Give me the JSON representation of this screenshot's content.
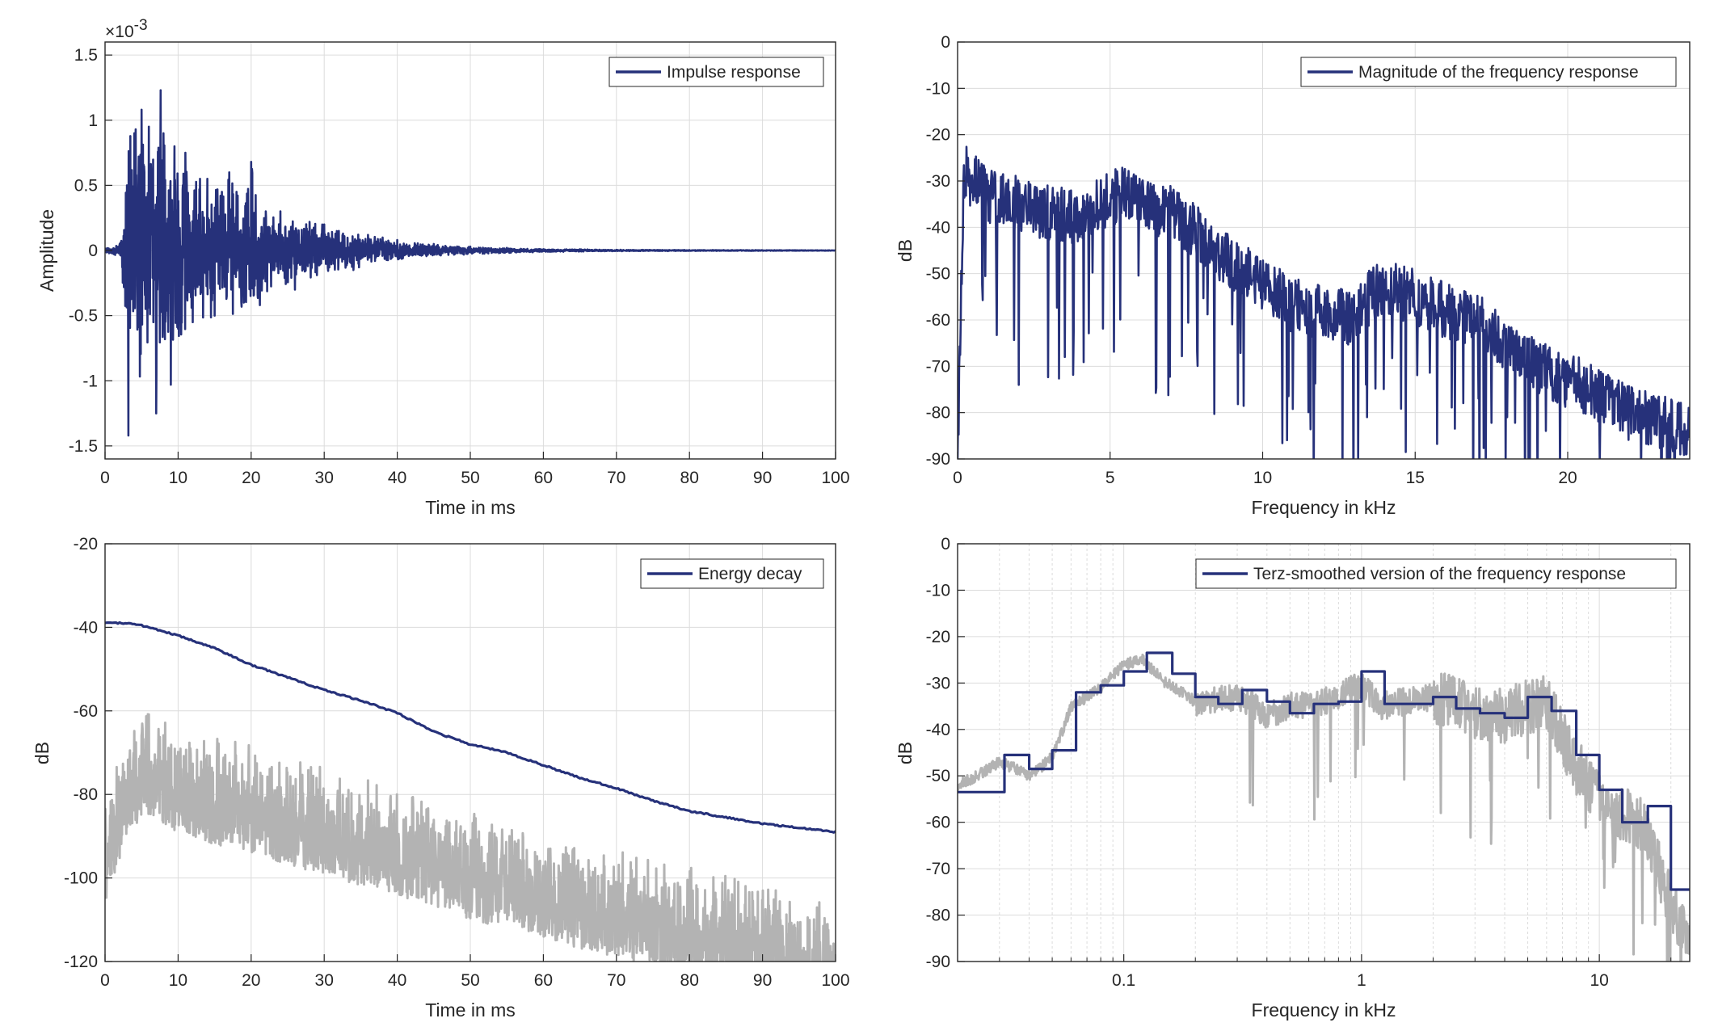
{
  "colors": {
    "primary": "#26317a",
    "secondary": "#b3b3b3",
    "grid": "#dcdcdc",
    "axis": "#262626"
  },
  "chart_data": [
    {
      "id": "impulse",
      "type": "line",
      "title": "",
      "xlabel": "Time in ms",
      "ylabel": "Amplitude",
      "xlim": [
        0,
        100
      ],
      "ylim": [
        -1.6,
        1.6
      ],
      "xticks": [
        0,
        10,
        20,
        30,
        40,
        50,
        60,
        70,
        80,
        90,
        100
      ],
      "yticks": [
        -1.5,
        -1,
        -0.5,
        0,
        0.5,
        1,
        1.5
      ],
      "ytick_labels": [
        "-1.5",
        "-1",
        "-0.5",
        "0",
        "0.5",
        "1",
        "1.5"
      ],
      "y_exponent_label": "×10",
      "y_exponent_power": "-3",
      "grid": true,
      "legend_placement": "top-right",
      "series": [
        {
          "name": "Impulse response",
          "color": "#26317a",
          "x": [
            0,
            2,
            3,
            3.2,
            4,
            5,
            6,
            7,
            7.6,
            8,
            9,
            9.5,
            10,
            11,
            12,
            13,
            14,
            15,
            16,
            17,
            18,
            19,
            20,
            22,
            24,
            26,
            28,
            30,
            32,
            34,
            36,
            38,
            40,
            45,
            50,
            55,
            60,
            65,
            70,
            80,
            90,
            100
          ],
          "y": [
            0,
            0.05,
            0.5,
            -1.42,
            0.9,
            1.08,
            0.95,
            -1.25,
            1.23,
            0.9,
            -1.03,
            0.8,
            -0.6,
            0.75,
            -0.55,
            0.55,
            0.55,
            -0.5,
            0.45,
            0.6,
            0.45,
            -0.4,
            0.68,
            0.3,
            0.3,
            -0.3,
            0.22,
            0.2,
            0.15,
            -0.15,
            0.12,
            0.1,
            0.08,
            0.05,
            0.03,
            0.02,
            0.01,
            0.01,
            0.005,
            0.003,
            0.002,
            0.001
          ],
          "envelope_max": [
            0.02,
            0.05,
            0.6,
            0.95,
            1.05,
            1.08,
            1.0,
            0.95,
            1.23,
            1.0,
            0.9,
            0.85,
            0.8,
            0.75,
            0.65,
            0.6,
            0.58,
            0.55,
            0.52,
            0.6,
            0.5,
            0.45,
            0.68,
            0.35,
            0.3,
            0.28,
            0.22,
            0.2,
            0.17,
            0.15,
            0.12,
            0.1,
            0.08,
            0.05,
            0.03,
            0.02,
            0.012,
            0.01,
            0.006,
            0.004,
            0.003,
            0.002
          ]
        }
      ]
    },
    {
      "id": "magnitude",
      "type": "line",
      "title": "",
      "xlabel": "Frequency in kHz",
      "ylabel": "dB",
      "xlim": [
        0,
        24
      ],
      "ylim": [
        -90,
        0
      ],
      "xticks": [
        0,
        5,
        10,
        15,
        20
      ],
      "yticks": [
        0,
        -10,
        -20,
        -30,
        -40,
        -50,
        -60,
        -70,
        -80,
        -90
      ],
      "grid": true,
      "legend_placement": "top-right",
      "series": [
        {
          "name": "Magnitude of the frequency response",
          "color": "#26317a",
          "x": [
            0,
            0.2,
            1,
            2,
            3,
            4,
            5,
            5.5,
            6,
            7,
            8,
            9,
            10,
            11,
            12,
            13,
            13.5,
            14,
            15,
            16,
            17,
            18,
            19,
            20,
            21,
            22,
            23,
            24
          ],
          "y": [
            -90,
            -28,
            -33,
            -35,
            -37,
            -38,
            -34,
            -32,
            -35,
            -37,
            -42,
            -48,
            -52,
            -57,
            -58,
            -60,
            -55,
            -53,
            -55,
            -58,
            -60,
            -65,
            -70,
            -73,
            -76,
            -80,
            -82,
            -84
          ]
        }
      ]
    },
    {
      "id": "energy",
      "type": "line",
      "title": "",
      "xlabel": "Time in ms",
      "ylabel": "dB",
      "xlim": [
        0,
        100
      ],
      "ylim": [
        -120,
        -20
      ],
      "xticks": [
        0,
        10,
        20,
        30,
        40,
        50,
        60,
        70,
        80,
        90,
        100
      ],
      "yticks": [
        -20,
        -40,
        -60,
        -80,
        -100,
        -120
      ],
      "grid": true,
      "legend_placement": "top-right",
      "series": [
        {
          "name": "Energy decay",
          "color": "#26317a",
          "x": [
            0,
            3,
            5,
            10,
            15,
            20,
            25,
            30,
            35,
            40,
            45,
            50,
            55,
            60,
            65,
            70,
            75,
            80,
            85,
            90,
            95,
            100
          ],
          "y": [
            -39,
            -39,
            -39.5,
            -42,
            -45,
            -49,
            -52,
            -55,
            -57.5,
            -60.5,
            -65,
            -68,
            -70,
            -73,
            -76,
            -78.5,
            -81.5,
            -84,
            -85.5,
            -87,
            -88,
            -89
          ]
        },
        {
          "name": "",
          "color": "#b3b3b3",
          "x": [
            0,
            3,
            5,
            10,
            15,
            20,
            25,
            30,
            35,
            40,
            45,
            50,
            55,
            60,
            65,
            70,
            75,
            80,
            85,
            90,
            95,
            100
          ],
          "y": [
            -95,
            -75,
            -72,
            -75,
            -78,
            -80,
            -83,
            -85,
            -88,
            -90,
            -93,
            -96,
            -98,
            -100,
            -103,
            -105,
            -107,
            -109,
            -111,
            -113,
            -116,
            -118
          ]
        }
      ]
    },
    {
      "id": "terz",
      "type": "line",
      "title": "",
      "xlabel": "Frequency in kHz",
      "ylabel": "dB",
      "xscale": "log",
      "xlim": [
        0.02,
        24
      ],
      "ylim": [
        -90,
        0
      ],
      "xticks": [
        0.1,
        1,
        10
      ],
      "xtick_labels": [
        "0.1",
        "1",
        "10"
      ],
      "yticks": [
        0,
        -10,
        -20,
        -30,
        -40,
        -50,
        -60,
        -70,
        -80,
        -90
      ],
      "grid": true,
      "legend_placement": "top-right",
      "series": [
        {
          "name": "Terz-smoothed version of the frequency response",
          "color": "#26317a",
          "step": true,
          "x": [
            0.02,
            0.0315,
            0.04,
            0.05,
            0.063,
            0.08,
            0.1,
            0.125,
            0.16,
            0.2,
            0.25,
            0.315,
            0.4,
            0.5,
            0.63,
            0.8,
            1,
            1.25,
            1.6,
            2,
            2.5,
            3.15,
            4,
            5,
            6.3,
            8,
            10,
            12.5,
            16,
            20,
            24
          ],
          "y": [
            -53.5,
            -45.5,
            -48.5,
            -44.5,
            -32,
            -30.5,
            -27.5,
            -23.5,
            -28,
            -33,
            -34.5,
            -31.5,
            -34,
            -36.5,
            -34.5,
            -34,
            -27.5,
            -34.5,
            -34.5,
            -33,
            -35.5,
            -36.5,
            -37.5,
            -33,
            -36,
            -45.5,
            -53,
            -60,
            -56.5,
            -74.5,
            -74.5
          ]
        },
        {
          "name": "",
          "color": "#b3b3b3",
          "x": [
            0.02,
            0.03,
            0.04,
            0.05,
            0.06,
            0.08,
            0.1,
            0.12,
            0.15,
            0.2,
            0.3,
            0.4,
            0.5,
            0.7,
            1,
            1.2,
            1.5,
            2,
            3,
            4,
            5,
            6,
            7,
            8,
            10,
            12,
            15,
            20,
            24
          ],
          "y": [
            -52,
            -47,
            -50,
            -46,
            -35,
            -31,
            -26,
            -25,
            -30,
            -34,
            -33,
            -37,
            -35,
            -34,
            -30,
            -35,
            -34,
            -33,
            -36,
            -37,
            -35,
            -34,
            -42,
            -48,
            -55,
            -58,
            -60,
            -78,
            -85
          ]
        }
      ]
    }
  ]
}
